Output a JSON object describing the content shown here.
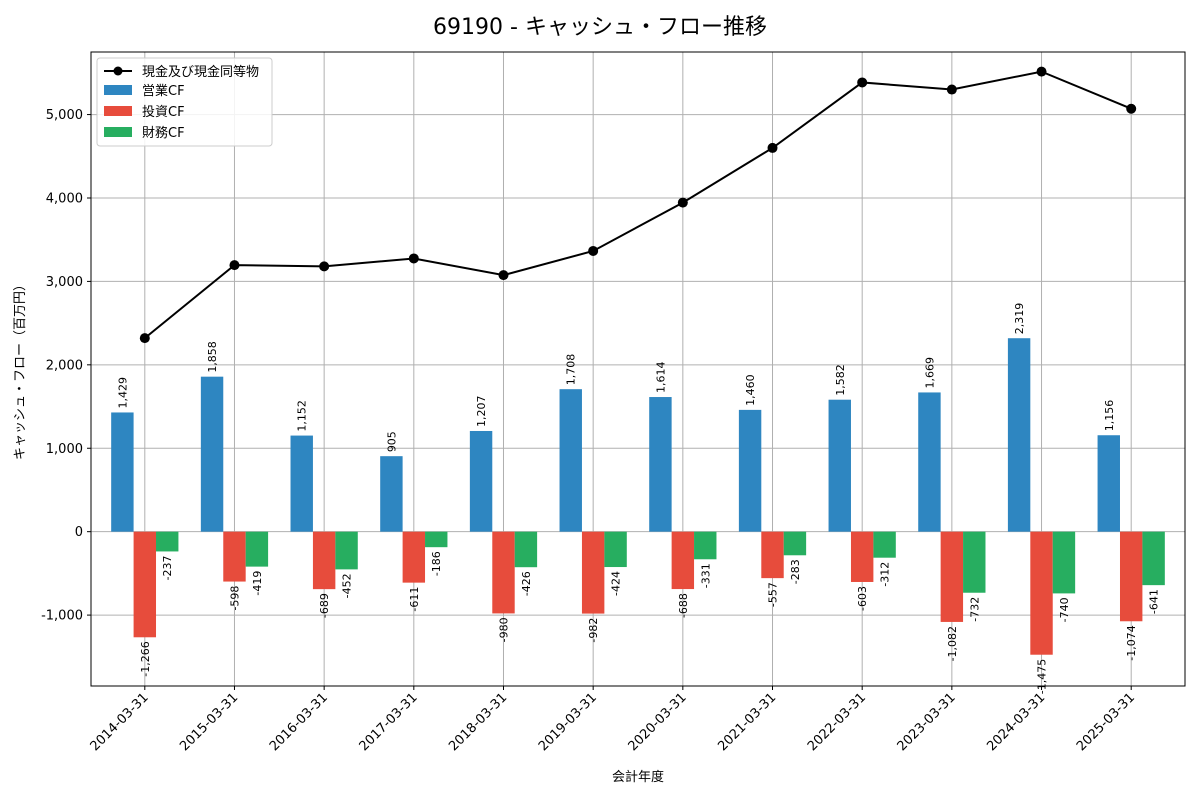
{
  "chart_data": {
    "type": "bar",
    "title": "69190 - キャッシュ・フロー推移",
    "xlabel": "会計年度",
    "ylabel": "キャッシュ・フロー（百万円）",
    "ylim": [
      -1850,
      5750
    ],
    "yticks": [
      -1000,
      0,
      1000,
      2000,
      3000,
      4000,
      5000
    ],
    "ytick_labels": [
      "-1,000",
      "0",
      "1,000",
      "2,000",
      "3,000",
      "4,000",
      "5,000"
    ],
    "grid": true,
    "legend_position": "top-left",
    "categories": [
      "2014-03-31",
      "2015-03-31",
      "2016-03-31",
      "2017-03-31",
      "2018-03-31",
      "2019-03-31",
      "2020-03-31",
      "2021-03-31",
      "2022-03-31",
      "2023-03-31",
      "2024-03-31",
      "2025-03-31"
    ],
    "series": [
      {
        "name": "営業CF",
        "type": "bar",
        "color": "#2e86c1",
        "values": [
          1429,
          1858,
          1152,
          905,
          1207,
          1708,
          1614,
          1460,
          1582,
          1669,
          2319,
          1156
        ],
        "labels": [
          "1,429",
          "1,858",
          "1,152",
          "905",
          "1,207",
          "1,708",
          "1,614",
          "1,460",
          "1,582",
          "1,669",
          "2,319",
          "1,156"
        ]
      },
      {
        "name": "投資CF",
        "type": "bar",
        "color": "#e74c3c",
        "values": [
          -1266,
          -598,
          -689,
          -611,
          -980,
          -982,
          -688,
          -557,
          -603,
          -1082,
          -1475,
          -1074
        ],
        "labels": [
          "-1,266",
          "-598",
          "-689",
          "-611",
          "-980",
          "-982",
          "-688",
          "-557",
          "-603",
          "-1,082",
          "-1,475",
          "-1,074"
        ]
      },
      {
        "name": "財務CF",
        "type": "bar",
        "color": "#27ae60",
        "values": [
          -237,
          -419,
          -452,
          -186,
          -426,
          -424,
          -331,
          -283,
          -312,
          -732,
          -740,
          -641
        ],
        "labels": [
          "-237",
          "-419",
          "-452",
          "-186",
          "-426",
          "-424",
          "-331",
          "-283",
          "-312",
          "-732",
          "-740",
          "-641"
        ]
      },
      {
        "name": "現金及び現金同等物",
        "type": "line",
        "color": "#000000",
        "values": [
          2320,
          3195,
          3180,
          3275,
          3075,
          3365,
          3945,
          4600,
          5385,
          5300,
          5515,
          5070
        ]
      }
    ]
  }
}
